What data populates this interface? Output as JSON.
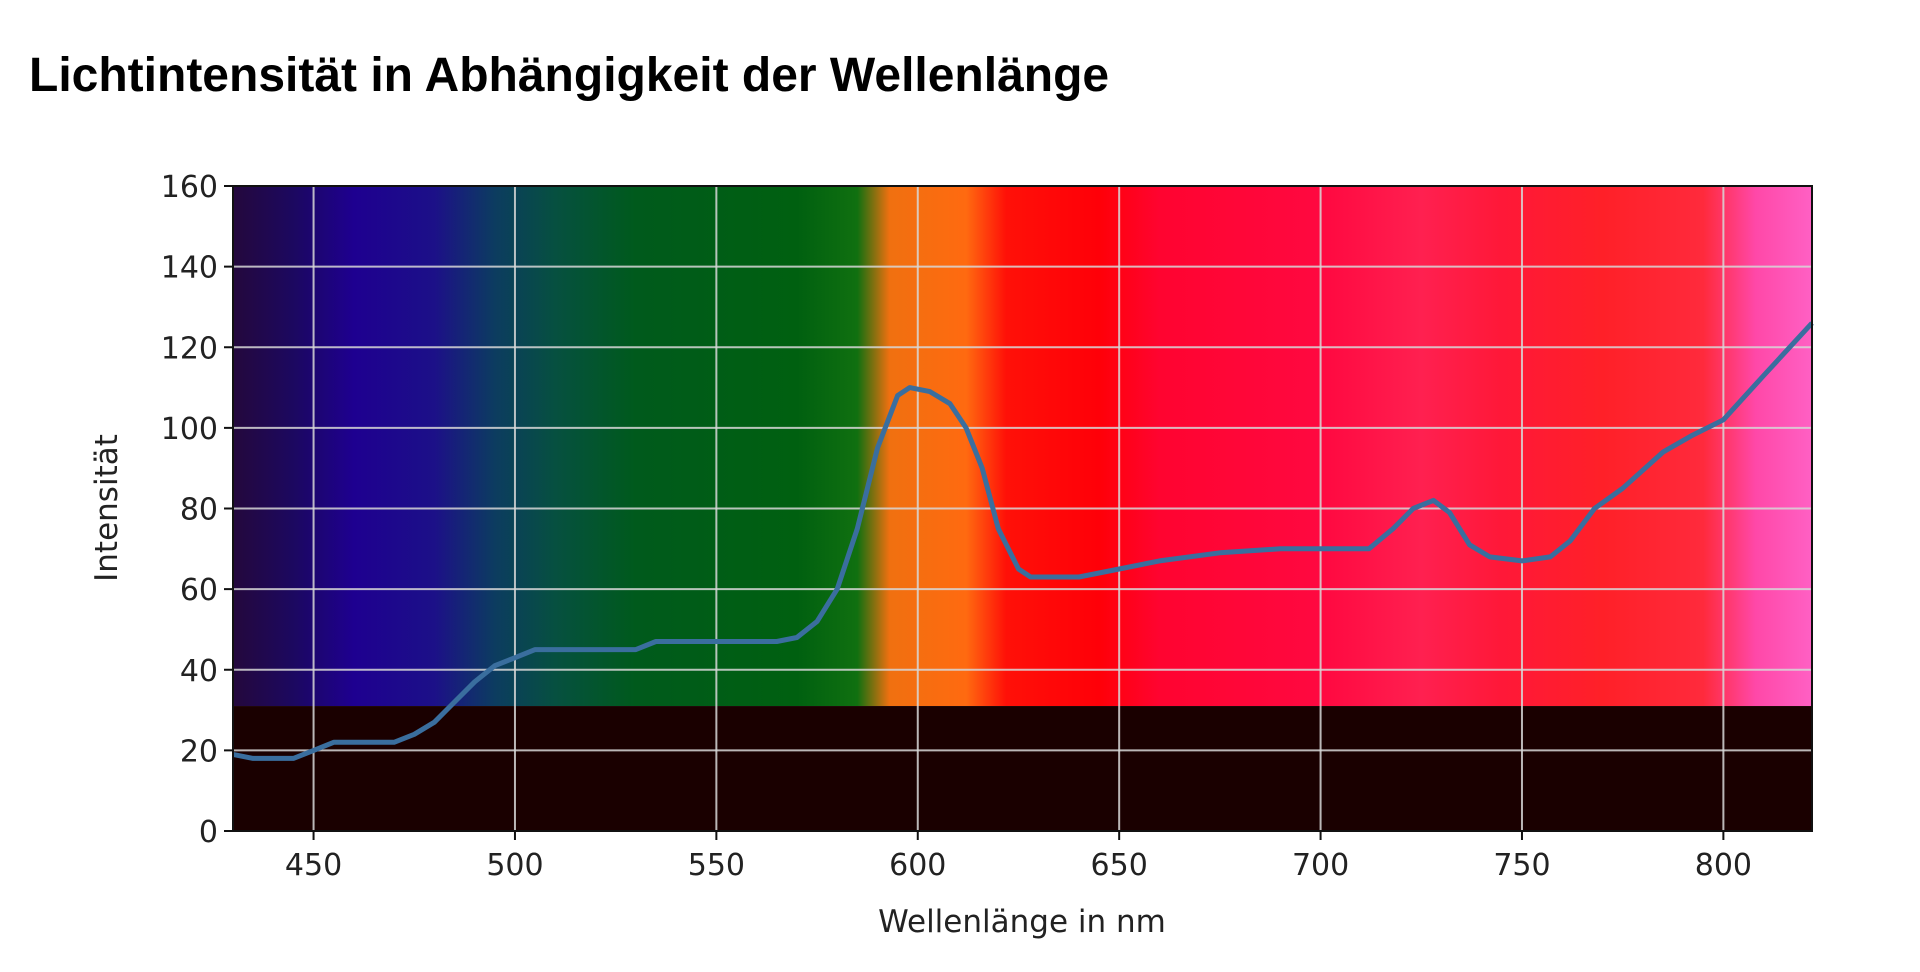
{
  "title": "Lichtintensität in Abhängigkeit der Wellenlänge",
  "chart_data": {
    "type": "line",
    "title": "Lichtintensität in Abhängigkeit der Wellenlänge",
    "xlabel": "Wellenlänge in nm",
    "ylabel": "Intensität",
    "xlim": [
      430,
      822
    ],
    "ylim": [
      0,
      160
    ],
    "xticks": [
      450,
      500,
      550,
      600,
      650,
      700,
      750,
      800
    ],
    "yticks": [
      0,
      20,
      40,
      60,
      80,
      100,
      120,
      140,
      160
    ],
    "grid": true,
    "line_color": "#3a6e9e",
    "background": "spectrum image",
    "spectrum_band_bottom": 31,
    "spectrum_dark_color": "#1a0000",
    "spectrum_colors": [
      {
        "nm": 430,
        "color": "#24083c"
      },
      {
        "nm": 445,
        "color": "#1c0860"
      },
      {
        "nm": 460,
        "color": "#1e0090"
      },
      {
        "nm": 480,
        "color": "#1c1088"
      },
      {
        "nm": 495,
        "color": "#0c3c60"
      },
      {
        "nm": 510,
        "color": "#065040"
      },
      {
        "nm": 530,
        "color": "#005a1c"
      },
      {
        "nm": 570,
        "color": "#006010"
      },
      {
        "nm": 585,
        "color": "#107010"
      },
      {
        "nm": 593,
        "color": "#f07010"
      },
      {
        "nm": 612,
        "color": "#ff6a10"
      },
      {
        "nm": 622,
        "color": "#ff1008"
      },
      {
        "nm": 645,
        "color": "#ff0008"
      },
      {
        "nm": 660,
        "color": "#ff0430"
      },
      {
        "nm": 700,
        "color": "#ff0840"
      },
      {
        "nm": 725,
        "color": "#ff2050"
      },
      {
        "nm": 745,
        "color": "#ff1838"
      },
      {
        "nm": 770,
        "color": "#ff2028"
      },
      {
        "nm": 795,
        "color": "#ff2a3c"
      },
      {
        "nm": 808,
        "color": "#ff48a8"
      },
      {
        "nm": 822,
        "color": "#ff60c4"
      }
    ],
    "x": [
      430,
      435,
      445,
      450,
      455,
      470,
      475,
      480,
      485,
      490,
      495,
      500,
      505,
      510,
      530,
      535,
      545,
      565,
      570,
      575,
      580,
      585,
      590,
      595,
      598,
      603,
      608,
      612,
      616,
      620,
      625,
      628,
      640,
      650,
      660,
      675,
      690,
      712,
      718,
      723,
      728,
      732,
      737,
      742,
      750,
      757,
      762,
      768,
      775,
      785,
      792,
      800,
      810,
      822
    ],
    "y": [
      19,
      18,
      18,
      20,
      22,
      22,
      24,
      27,
      32,
      37,
      41,
      43,
      45,
      45,
      45,
      47,
      47,
      47,
      48,
      52,
      60,
      75,
      95,
      108,
      110,
      109,
      106,
      100,
      90,
      75,
      65,
      63,
      63,
      65,
      67,
      69,
      70,
      70,
      75,
      80,
      82,
      79,
      71,
      68,
      67,
      68,
      72,
      80,
      85,
      94,
      98,
      102,
      113,
      126
    ]
  }
}
